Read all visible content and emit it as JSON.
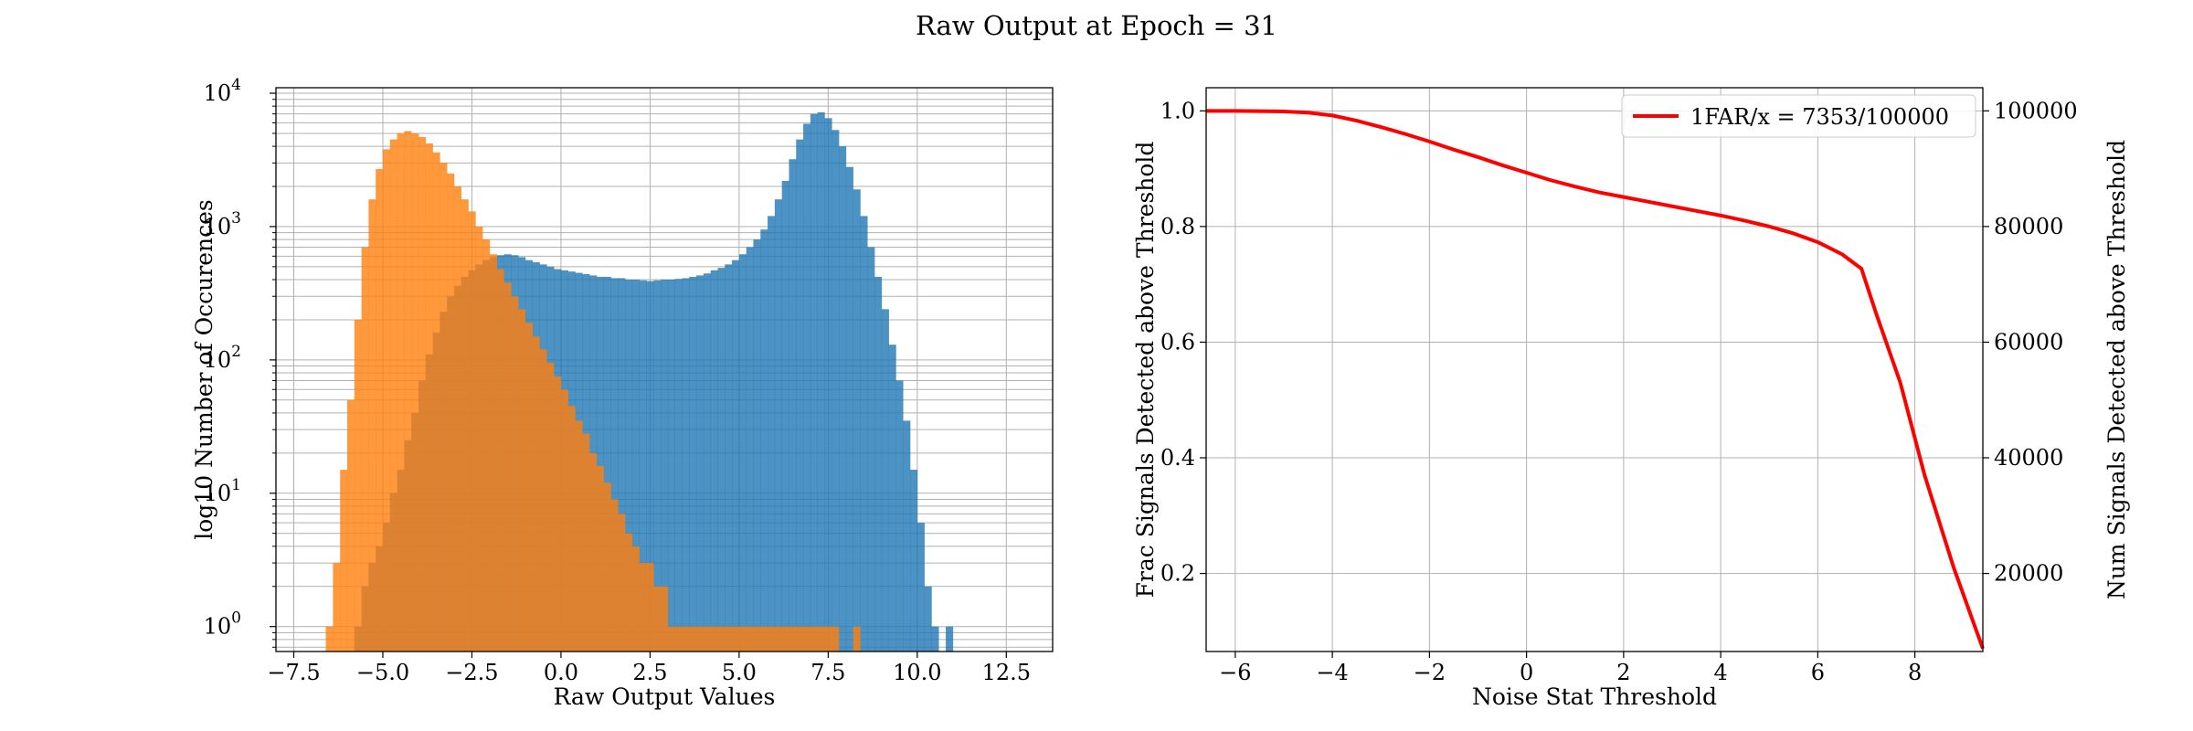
{
  "title": "Raw Output at Epoch = 31",
  "colors": {
    "blue": "#1f77b4",
    "orange": "#ff7f0e",
    "red": "#ff0000"
  },
  "chart_data": [
    {
      "type": "bar",
      "subtype": "histogram",
      "xlabel": "Raw Output Values",
      "ylabel": "log10 Number of Occurences",
      "xlim": [
        -8.0,
        13.8
      ],
      "ylim": [
        0.65,
        11000
      ],
      "yscale": "log",
      "grid": true,
      "xticks": [
        -7.5,
        -5.0,
        -2.5,
        0.0,
        2.5,
        5.0,
        7.5,
        10.0,
        12.5
      ],
      "xtick_labels": [
        "−7.5",
        "−5.0",
        "−2.5",
        "0.0",
        "2.5",
        "5.0",
        "7.5",
        "10.0",
        "12.5"
      ],
      "ytick_labels": [
        {
          "base": "10",
          "exp": "0",
          "value": 1
        },
        {
          "base": "10",
          "exp": "1",
          "value": 10
        },
        {
          "base": "10",
          "exp": "2",
          "value": 100
        },
        {
          "base": "10",
          "exp": "3",
          "value": 1000
        },
        {
          "base": "10",
          "exp": "4",
          "value": 10000
        }
      ],
      "bin_width": 0.2,
      "series": [
        {
          "color": "#1f77b4",
          "alpha": 0.8,
          "bin_start": -5.8,
          "counts": [
            1,
            2,
            3,
            4,
            6,
            10,
            15,
            25,
            40,
            70,
            110,
            160,
            230,
            300,
            360,
            420,
            470,
            520,
            560,
            590,
            610,
            620,
            610,
            590,
            560,
            540,
            520,
            500,
            480,
            470,
            460,
            450,
            440,
            430,
            420,
            420,
            410,
            410,
            400,
            400,
            395,
            390,
            395,
            400,
            400,
            405,
            410,
            420,
            430,
            445,
            470,
            490,
            520,
            560,
            620,
            700,
            800,
            950,
            1200,
            1600,
            2200,
            3200,
            4500,
            5900,
            7000,
            7200,
            6500,
            5300,
            4000,
            2800,
            1900,
            1200,
            700,
            420,
            240,
            130,
            70,
            35,
            15,
            6,
            2,
            1,
            0,
            1
          ]
        },
        {
          "color": "#ff7f0e",
          "alpha": 0.8,
          "bin_start": -6.6,
          "counts": [
            1,
            3,
            15,
            50,
            200,
            700,
            1600,
            2700,
            3800,
            4500,
            5000,
            5200,
            5000,
            4700,
            4200,
            3600,
            3000,
            2500,
            2000,
            1600,
            1300,
            1000,
            800,
            620,
            480,
            380,
            300,
            240,
            190,
            150,
            120,
            95,
            75,
            60,
            45,
            35,
            28,
            20,
            16,
            12,
            9,
            7,
            5,
            4,
            3,
            3,
            2,
            2,
            1,
            1,
            1,
            1,
            1,
            1,
            1,
            1,
            1,
            1,
            1,
            1,
            1,
            1,
            1,
            1,
            1,
            1,
            1,
            1,
            1,
            1,
            1,
            1,
            0,
            0,
            1
          ]
        }
      ]
    },
    {
      "type": "line",
      "xlabel": "Noise Stat Threshold",
      "ylabel": "Frac Signals Detected above Threshold",
      "ylabel_right": "Num Signals Detected above Threshold",
      "xlim": [
        -6.6,
        9.4
      ],
      "ylim": [
        0.065,
        1.04
      ],
      "ylim_right": [
        6500,
        104000
      ],
      "grid": true,
      "legend_position": "upper right",
      "xticks": [
        -6,
        -4,
        -2,
        0,
        2,
        4,
        6,
        8
      ],
      "xtick_labels": [
        "−6",
        "−4",
        "−2",
        "0",
        "2",
        "4",
        "6",
        "8"
      ],
      "yticks": [
        0.2,
        0.4,
        0.6,
        0.8,
        1.0
      ],
      "ytick_labels": [
        "0.2",
        "0.4",
        "0.6",
        "0.8",
        "1.0"
      ],
      "yticks_right": [
        20000,
        40000,
        60000,
        80000,
        100000
      ],
      "ytick_labels_right": [
        "20000",
        "40000",
        "60000",
        "80000",
        "100000"
      ],
      "series": [
        {
          "name": "1FAR/x = 7353/100000",
          "color": "#ff0000",
          "x": [
            -6.6,
            -6,
            -5,
            -4.5,
            -4,
            -3.5,
            -3,
            -2.5,
            -2,
            -1.5,
            -1,
            -0.5,
            0,
            0.5,
            1,
            1.5,
            2,
            2.5,
            3,
            3.5,
            4,
            4.5,
            5,
            5.5,
            6,
            6.5,
            6.9,
            7.2,
            7.7,
            8.2,
            8.8,
            9.4
          ],
          "y": [
            1.0,
            1.0,
            0.999,
            0.997,
            0.992,
            0.983,
            0.972,
            0.96,
            0.947,
            0.933,
            0.92,
            0.906,
            0.893,
            0.88,
            0.869,
            0.859,
            0.851,
            0.843,
            0.835,
            0.827,
            0.819,
            0.81,
            0.8,
            0.788,
            0.773,
            0.752,
            0.727,
            0.65,
            0.53,
            0.37,
            0.21,
            0.07
          ]
        }
      ]
    }
  ]
}
